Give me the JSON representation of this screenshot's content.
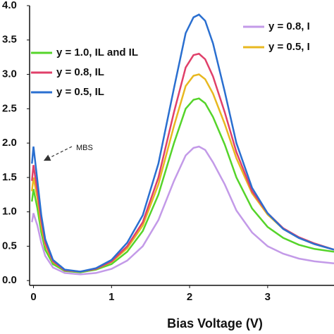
{
  "chart_data": {
    "type": "line",
    "x": [
      -0.02,
      0,
      0.05,
      0.1,
      0.15,
      0.25,
      0.4,
      0.6,
      0.8,
      1.0,
      1.2,
      1.4,
      1.6,
      1.8,
      1.95,
      2.05,
      2.12,
      2.2,
      2.3,
      2.45,
      2.6,
      2.8,
      3.0,
      3.2,
      3.4,
      3.6,
      3.85
    ],
    "series": [
      {
        "name": "y = 1.0, IL and IL",
        "color": "#55d42a",
        "legend": "left",
        "values": [
          1.15,
          1.33,
          1.05,
          0.7,
          0.45,
          0.24,
          0.14,
          0.12,
          0.16,
          0.24,
          0.42,
          0.72,
          1.25,
          2.0,
          2.5,
          2.63,
          2.65,
          2.58,
          2.38,
          1.98,
          1.5,
          1.05,
          0.78,
          0.62,
          0.52,
          0.46,
          0.42
        ]
      },
      {
        "name": "y = 0.8, IL",
        "color": "#e0406a",
        "legend": "left",
        "values": [
          1.45,
          1.68,
          1.3,
          0.87,
          0.55,
          0.28,
          0.15,
          0.13,
          0.17,
          0.28,
          0.5,
          0.85,
          1.5,
          2.45,
          3.1,
          3.28,
          3.3,
          3.22,
          2.97,
          2.45,
          1.87,
          1.3,
          0.98,
          0.76,
          0.63,
          0.54,
          0.45
        ]
      },
      {
        "name": "y = 0.5, IL",
        "color": "#2a6fd0",
        "legend": "left",
        "values": [
          1.7,
          1.95,
          1.45,
          0.95,
          0.6,
          0.3,
          0.16,
          0.13,
          0.18,
          0.3,
          0.55,
          0.95,
          1.7,
          2.8,
          3.6,
          3.83,
          3.87,
          3.78,
          3.45,
          2.75,
          2.0,
          1.35,
          0.98,
          0.75,
          0.62,
          0.53,
          0.45
        ]
      },
      {
        "name": "y = 0.8, I",
        "color": "#c39ae8",
        "legend": "right",
        "values": [
          0.85,
          0.98,
          0.8,
          0.55,
          0.36,
          0.19,
          0.11,
          0.09,
          0.11,
          0.17,
          0.29,
          0.5,
          0.88,
          1.45,
          1.82,
          1.93,
          1.95,
          1.9,
          1.72,
          1.4,
          1.02,
          0.7,
          0.5,
          0.39,
          0.32,
          0.28,
          0.25
        ]
      },
      {
        "name": "y = 0.5, I",
        "color": "#e8b820",
        "legend": "right",
        "values": [
          1.3,
          1.5,
          1.2,
          0.8,
          0.52,
          0.27,
          0.15,
          0.13,
          0.17,
          0.27,
          0.47,
          0.8,
          1.4,
          2.25,
          2.83,
          2.98,
          3.0,
          2.93,
          2.72,
          2.28,
          1.78,
          1.27,
          0.96,
          0.75,
          0.62,
          0.53,
          0.45
        ]
      }
    ],
    "xlabel": "Bias Voltage (V)",
    "annotation": "MBS",
    "xlim": [
      -0.05,
      3.85
    ],
    "xticks": [
      0,
      1,
      2,
      3
    ],
    "ylim": [
      -0.07,
      4.0
    ],
    "yticks": [
      {
        "value": 0,
        "label": "0.0"
      },
      {
        "value": 0.5,
        "label": "0.5"
      },
      {
        "value": 1,
        "label": "1.0"
      },
      {
        "value": 1.5,
        "label": "1.5"
      },
      {
        "value": 2,
        "label": "2.0"
      },
      {
        "value": 2.5,
        "label": "2.5"
      },
      {
        "value": 3,
        "label": "3.0"
      },
      {
        "value": 3.5,
        "label": "3.5"
      },
      {
        "value": 4,
        "label": "4.0"
      }
    ]
  }
}
